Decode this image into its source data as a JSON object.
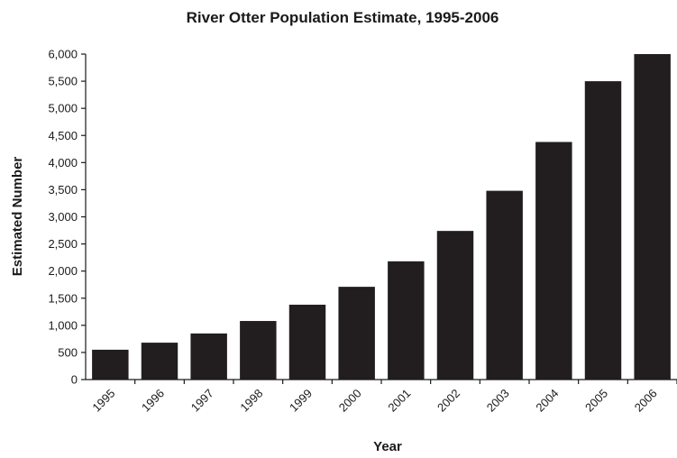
{
  "chart_data": {
    "type": "bar",
    "title": "River Otter Population Estimate, 1995-2006",
    "xlabel": "Year",
    "ylabel": "Estimated Number",
    "categories": [
      "1995",
      "1996",
      "1997",
      "1998",
      "1999",
      "2000",
      "2001",
      "2002",
      "2003",
      "2004",
      "2005",
      "2006"
    ],
    "values": [
      550,
      680,
      850,
      1080,
      1380,
      1710,
      2180,
      2740,
      3480,
      4380,
      5500,
      6000
    ],
    "ylim": [
      0,
      6000
    ],
    "yticks": [
      0,
      500,
      1000,
      1500,
      2000,
      2500,
      3000,
      3500,
      4000,
      4500,
      5000,
      5500,
      6000
    ],
    "ytick_labels": [
      "0",
      "500",
      "1,000",
      "1,500",
      "2,000",
      "2,500",
      "3,000",
      "3,500",
      "4,000",
      "4,500",
      "5,000",
      "5,500",
      "6,000"
    ],
    "grid": false,
    "legend": "none",
    "colors": {
      "bar": "#221e1f"
    }
  }
}
